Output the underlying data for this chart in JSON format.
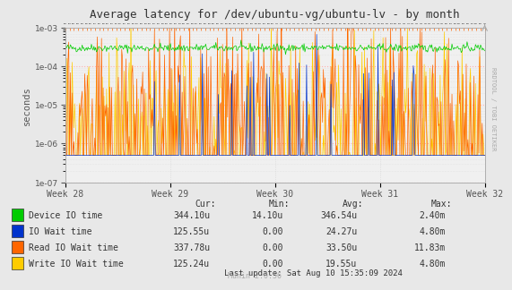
{
  "title": "Average latency for /dev/ubuntu-vg/ubuntu-lv - by month",
  "ylabel": "seconds",
  "xlabel_ticks": [
    "Week 28",
    "Week 29",
    "Week 30",
    "Week 31",
    "Week 32"
  ],
  "bg_color": "#e8e8e8",
  "plot_bg_color": "#f0f0f0",
  "grid_color": "#cccccc",
  "grid_color_major_h": "#ffaaaa",
  "colors": {
    "device_io": "#00cc00",
    "io_wait": "#0033cc",
    "read_io_wait": "#ff6600",
    "write_io_wait": "#ffcc00"
  },
  "legend": [
    {
      "label": "Device IO time",
      "color": "#00cc00",
      "cur": "344.10u",
      "min": "14.10u",
      "avg": "346.54u",
      "max": "2.40m"
    },
    {
      "label": "IO Wait time",
      "color": "#0033cc",
      "cur": "125.55u",
      "min": "0.00",
      "avg": "24.27u",
      "max": "4.80m"
    },
    {
      "label": "Read IO Wait time",
      "color": "#ff6600",
      "cur": "337.78u",
      "min": "0.00",
      "avg": "33.50u",
      "max": "11.83m"
    },
    {
      "label": "Write IO Wait time",
      "color": "#ffcc00",
      "cur": "125.24u",
      "min": "0.00",
      "avg": "19.55u",
      "max": "4.80m"
    }
  ],
  "last_update": "Last update: Sat Aug 10 15:35:09 2024",
  "rrdtool_label": "RRDTOOL / TOBI OETIKER",
  "munin_label": "Munin 2.0.56",
  "n_points": 500,
  "seed": 42,
  "ymin": 1e-07,
  "ymax": 0.001
}
